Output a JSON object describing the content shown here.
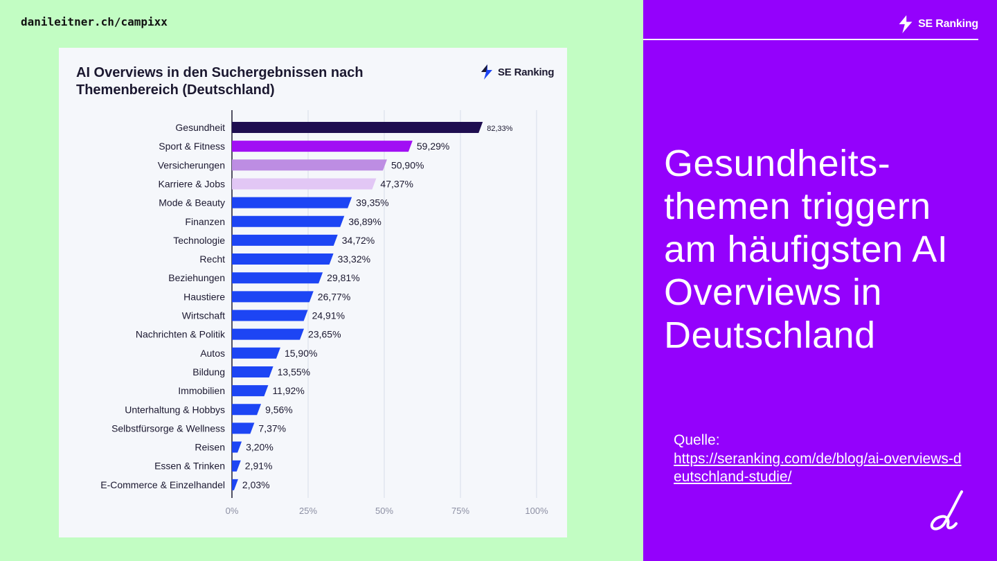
{
  "site_url": "danileitner.ch/campixx",
  "card": {
    "title": "AI Overviews in den Suchergebnissen nach Themenbereich (Deutschland)",
    "logo_text": "SE Ranking"
  },
  "panel": {
    "logo_text": "SE Ranking",
    "headline": "Gesundheits- themen triggern am häufigsten AI Overviews in Deutschland",
    "source_label": "Quelle:",
    "source_url": "https://seranking.com/de/blog/ai-overviews-deutschland-studie/"
  },
  "colors": {
    "page_bg": "#c2fdc3",
    "panel_bg": "#9401fc",
    "bar_default": "#1d45f4",
    "bar_first": "#1f0e50",
    "bar_second": "#a10ff4",
    "bar_third": "#bd8de3",
    "bar_fourth": "#e2c7f5"
  },
  "chart_data": {
    "type": "bar",
    "orientation": "horizontal",
    "title": "AI Overviews in den Suchergebnissen nach Themenbereich (Deutschland)",
    "xlabel": "",
    "ylabel": "",
    "xlim": [
      0,
      100
    ],
    "xticks": [
      "0%",
      "25%",
      "50%",
      "75%",
      "100%"
    ],
    "grid": true,
    "categories": [
      "Gesundheit",
      "Sport & Fitness",
      "Versicherungen",
      "Karriere & Jobs",
      "Mode & Beauty",
      "Finanzen",
      "Technologie",
      "Recht",
      "Beziehungen",
      "Haustiere",
      "Wirtschaft",
      "Nachrichten & Politik",
      "Autos",
      "Bildung",
      "Immobilien",
      "Unterhaltung & Hobbys",
      "Selbstfürsorge & Wellness",
      "Reisen",
      "Essen & Trinken",
      "E-Commerce & Einzelhandel"
    ],
    "values": [
      82.33,
      59.29,
      50.9,
      47.37,
      39.35,
      36.89,
      34.72,
      33.32,
      29.81,
      26.77,
      24.91,
      23.65,
      15.9,
      13.55,
      11.92,
      9.56,
      7.37,
      3.2,
      2.91,
      2.03
    ],
    "value_labels": [
      "82,33%",
      "59,29%",
      "50,90%",
      "47,37%",
      "39,35%",
      "36,89%",
      "34,72%",
      "33,32%",
      "29,81%",
      "26,77%",
      "24,91%",
      "23,65%",
      "15,90%",
      "13,55%",
      "11,92%",
      "9,56%",
      "7,37%",
      "3,20%",
      "2,91%",
      "2,03%"
    ]
  }
}
